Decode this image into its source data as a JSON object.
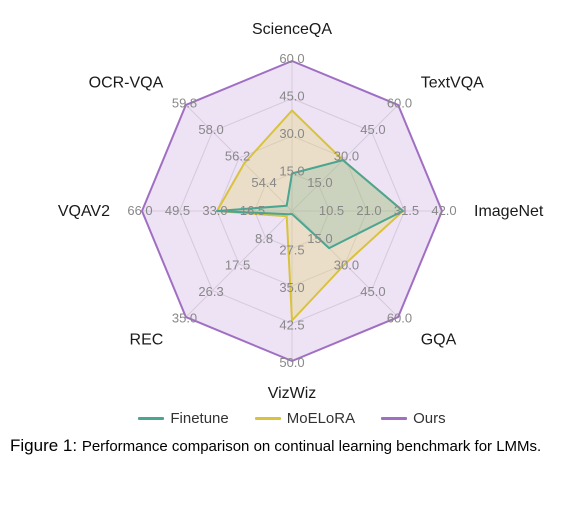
{
  "chart": {
    "type": "radar",
    "axes": [
      {
        "name": "ScienceQA",
        "ticks": [
          15.0,
          30.0,
          45.0,
          60.0
        ]
      },
      {
        "name": "TextVQA",
        "ticks": [
          15.0,
          30.0,
          45.0,
          60.0
        ]
      },
      {
        "name": "ImageNet",
        "ticks": [
          10.5,
          21.0,
          31.5,
          42.0
        ]
      },
      {
        "name": "GQA",
        "ticks": [
          15.0,
          30.0,
          45.0,
          60.0
        ]
      },
      {
        "name": "VizWiz",
        "ticks": [
          27.5,
          35.0,
          42.5,
          50.0
        ]
      },
      {
        "name": "REC",
        "ticks": [
          8.8,
          17.5,
          26.3,
          35.0
        ]
      },
      {
        "name": "VQAV2",
        "ticks": [
          16.5,
          33.0,
          49.5,
          66.0
        ]
      },
      {
        "name": "OCR-VQA",
        "ticks": [
          54.4,
          56.2,
          58.0,
          59.8
        ]
      }
    ],
    "rings": 4,
    "series": [
      {
        "name": "Finetune",
        "color": "#4aa591",
        "fill": "#4aa59133",
        "values_ring_fraction": [
          0.25,
          0.48,
          0.74,
          0.35,
          0.02,
          0.03,
          0.5,
          0.05
        ]
      },
      {
        "name": "MoELoRA",
        "color": "#d9c23c",
        "fill": "#e7d87055",
        "values_ring_fraction": [
          0.67,
          0.48,
          0.74,
          0.5,
          0.73,
          0.05,
          0.5,
          0.45
        ]
      },
      {
        "name": "Ours",
        "color": "#a06fc3",
        "fill": "#cba9e055",
        "values_ring_fraction": [
          1.0,
          1.0,
          1.0,
          1.0,
          1.0,
          1.0,
          1.0,
          1.0
        ]
      }
    ],
    "background_color": "#ffffff",
    "grid_color": "#dadada",
    "label_fontsize": 16,
    "tick_fontsize": 13,
    "line_width": 2
  },
  "legend": {
    "items": [
      {
        "label": "Finetune",
        "color": "#4aa591"
      },
      {
        "label": "MoELoRA",
        "color": "#d9c23c"
      },
      {
        "label": "Ours",
        "color": "#a06fc3"
      }
    ]
  },
  "caption": {
    "prefix": "Figure 1:",
    "text": "Performance comparison on continual learning benchmark for LMMs."
  }
}
